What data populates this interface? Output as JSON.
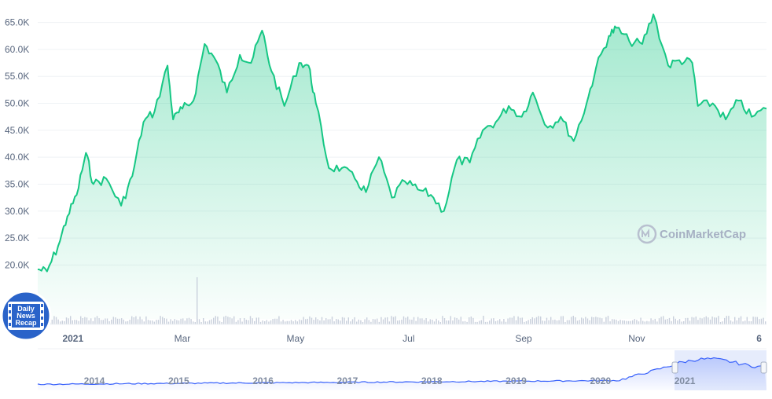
{
  "chart_data": {
    "type": "area",
    "title": "",
    "xlabel": "",
    "ylabel": "",
    "y_ticks": [
      "20.0K",
      "25.0K",
      "30.0K",
      "35.0K",
      "40.0K",
      "45.0K",
      "50.0K",
      "55.0K",
      "60.0K",
      "65.0K"
    ],
    "y_tick_values": [
      20000,
      25000,
      30000,
      35000,
      40000,
      45000,
      50000,
      55000,
      60000,
      65000
    ],
    "ylim": [
      10000,
      68000
    ],
    "xlim": [
      "2020-12-13",
      "2022-01-10"
    ],
    "x_ticks": [
      {
        "label": "2021",
        "date": "2021-01-01",
        "bold": true
      },
      {
        "label": "Mar",
        "date": "2021-03-01",
        "bold": false
      },
      {
        "label": "May",
        "date": "2021-05-01",
        "bold": false
      },
      {
        "label": "Jul",
        "date": "2021-07-01",
        "bold": false
      },
      {
        "label": "Sep",
        "date": "2021-09-01",
        "bold": false
      },
      {
        "label": "Nov",
        "date": "2021-11-01",
        "bold": false
      },
      {
        "label": "6",
        "date": "2022-01-06",
        "bold": true
      }
    ],
    "series": [
      {
        "color": "#16c784",
        "x": [
          "2020-12-13",
          "2020-12-18",
          "2020-12-24",
          "2020-12-29",
          "2021-01-03",
          "2021-01-08",
          "2021-01-12",
          "2021-01-19",
          "2021-01-27",
          "2021-02-02",
          "2021-02-08",
          "2021-02-14",
          "2021-02-21",
          "2021-02-24",
          "2021-03-01",
          "2021-03-07",
          "2021-03-13",
          "2021-03-19",
          "2021-03-25",
          "2021-04-01",
          "2021-04-07",
          "2021-04-13",
          "2021-04-18",
          "2021-04-25",
          "2021-05-03",
          "2021-05-08",
          "2021-05-12",
          "2021-05-19",
          "2021-05-26",
          "2021-06-02",
          "2021-06-08",
          "2021-06-15",
          "2021-06-22",
          "2021-06-29",
          "2021-07-06",
          "2021-07-13",
          "2021-07-20",
          "2021-07-27",
          "2021-08-03",
          "2021-08-10",
          "2021-08-17",
          "2021-08-24",
          "2021-08-31",
          "2021-09-06",
          "2021-09-14",
          "2021-09-21",
          "2021-09-28",
          "2021-10-05",
          "2021-10-10",
          "2021-10-17",
          "2021-10-21",
          "2021-10-28",
          "2021-11-04",
          "2021-11-10",
          "2021-11-18",
          "2021-11-24",
          "2021-12-01",
          "2021-12-04",
          "2021-12-12",
          "2021-12-19",
          "2021-12-26",
          "2022-01-02",
          "2022-01-10"
        ],
        "values": [
          19200,
          18800,
          23500,
          29000,
          33000,
          40800,
          35000,
          36000,
          31000,
          36500,
          46500,
          48500,
          57000,
          47000,
          49000,
          50500,
          61000,
          58000,
          52000,
          59000,
          57500,
          63500,
          56000,
          49500,
          57500,
          57000,
          50000,
          38000,
          38000,
          36000,
          33500,
          40000,
          32500,
          35500,
          34000,
          33000,
          30000,
          39500,
          39000,
          45000,
          46500,
          49500,
          47500,
          52000,
          45500,
          47500,
          43000,
          50000,
          56500,
          62500,
          64000,
          61500,
          61000,
          66500,
          57000,
          58000,
          57500,
          49500,
          50000,
          47000,
          50500,
          47500,
          49000
        ]
      }
    ],
    "navigator": {
      "years": [
        "2014",
        "2015",
        "2016",
        "2017",
        "2018",
        "2019",
        "2020",
        "2021"
      ]
    },
    "watermark": "CoinMarketCap",
    "badge": {
      "lines": [
        "Daily",
        "News",
        "Recap"
      ]
    }
  }
}
